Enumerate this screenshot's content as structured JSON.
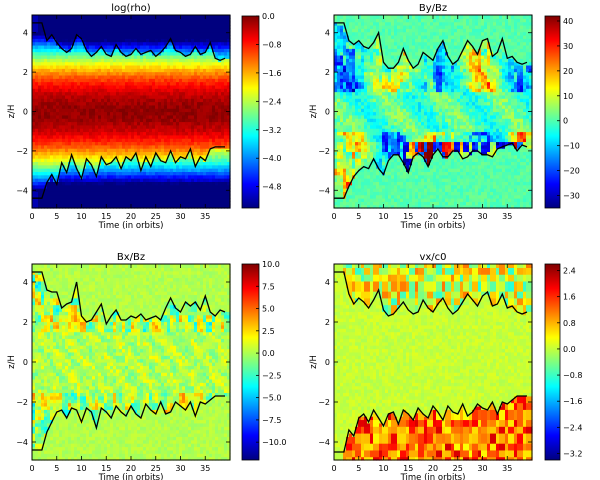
{
  "chart_data": [
    {
      "type": "heatmap",
      "title": "log(rho)",
      "xlabel": "Time (in orbits)",
      "ylabel": "z/H",
      "xlim": [
        0,
        40
      ],
      "ylim": [
        -4.9,
        4.9
      ],
      "x_ticks": [
        "0",
        "5",
        "10",
        "15",
        "20",
        "25",
        "30",
        "35"
      ],
      "y_ticks": [
        "4",
        "2",
        "0",
        "−2",
        "−4"
      ],
      "colorbar_ticks": [
        "0.0",
        "−0.8",
        "−1.6",
        "−2.4",
        "−3.2",
        "−4.0",
        "−4.8"
      ],
      "clim": [
        -5.4,
        0.0
      ],
      "colormap": "jet",
      "field": "density",
      "series": [
        {
          "x": [
            0,
            2,
            3,
            4,
            5,
            6,
            7,
            8,
            9,
            10,
            11,
            12,
            13,
            14,
            15,
            16,
            17,
            18,
            19,
            20,
            21,
            22,
            23,
            24,
            25,
            26,
            27,
            28,
            29,
            30,
            31,
            32,
            33,
            34,
            35,
            36,
            37,
            38,
            39
          ],
          "y": [
            4.5,
            4.5,
            3.6,
            3.9,
            3.5,
            3.2,
            3.0,
            3.2,
            3.9,
            3.7,
            3.1,
            2.8,
            3.0,
            3.3,
            2.9,
            2.8,
            3.4,
            3.0,
            2.8,
            2.9,
            3.2,
            2.9,
            3.0,
            3.1,
            2.8,
            3.0,
            3.3,
            3.7,
            3.1,
            3.0,
            2.8,
            2.9,
            3.3,
            2.9,
            3.0,
            3.5,
            2.7,
            2.6,
            2.7
          ]
        },
        {
          "x": [
            0,
            2,
            3,
            4,
            5,
            6,
            7,
            8,
            9,
            10,
            11,
            12,
            13,
            14,
            15,
            16,
            17,
            18,
            19,
            20,
            21,
            22,
            23,
            24,
            25,
            26,
            27,
            28,
            29,
            30,
            31,
            32,
            33,
            34,
            35,
            36,
            37,
            38,
            39
          ],
          "y": [
            -4.4,
            -4.4,
            -3.6,
            -3.2,
            -3.7,
            -2.6,
            -3.1,
            -2.2,
            -2.9,
            -3.4,
            -2.4,
            -2.7,
            -3.3,
            -2.3,
            -2.7,
            -2.6,
            -2.3,
            -2.9,
            -2.3,
            -2.5,
            -2.1,
            -3.0,
            -2.3,
            -2.8,
            -2.1,
            -2.5,
            -2.6,
            -2.0,
            -2.6,
            -2.3,
            -2.4,
            -1.9,
            -2.8,
            -2.3,
            -2.5,
            -1.9,
            -1.8,
            -1.8,
            -1.8
          ]
        }
      ]
    },
    {
      "type": "heatmap",
      "title": "By/Bz",
      "xlabel": "Time (in orbits)",
      "ylabel": "z/H",
      "xlim": [
        0,
        40
      ],
      "ylim": [
        -4.9,
        4.9
      ],
      "x_ticks": [
        "0",
        "5",
        "10",
        "15",
        "20",
        "25",
        "30",
        "35"
      ],
      "y_ticks": [
        "4",
        "2",
        "0",
        "−2",
        "−4"
      ],
      "colorbar_ticks": [
        "40",
        "30",
        "20",
        "10",
        "0",
        "−10",
        "−20",
        "−30"
      ],
      "clim": [
        -35,
        42
      ],
      "colormap": "jet",
      "field": "azimuthal",
      "series": [
        {
          "x": [
            0,
            2,
            3,
            4,
            5,
            6,
            7,
            8,
            9,
            10,
            11,
            12,
            13,
            14,
            15,
            16,
            17,
            18,
            19,
            20,
            21,
            22,
            23,
            24,
            25,
            26,
            27,
            28,
            29,
            30,
            31,
            32,
            33,
            34,
            35,
            36,
            37,
            38,
            39
          ],
          "y": [
            4.5,
            4.5,
            3.6,
            3.4,
            3.6,
            3.3,
            3.2,
            3.5,
            4.0,
            2.5,
            2.2,
            2.2,
            2.5,
            3.2,
            2.6,
            2.2,
            2.4,
            3.0,
            2.8,
            2.6,
            3.2,
            3.6,
            2.8,
            2.4,
            2.6,
            3.1,
            3.6,
            3.3,
            2.9,
            3.6,
            3.7,
            2.8,
            3.0,
            3.7,
            2.7,
            2.8,
            2.5,
            2.4,
            2.5
          ]
        },
        {
          "x": [
            0,
            2,
            3,
            4,
            5,
            6,
            7,
            8,
            9,
            10,
            11,
            12,
            13,
            14,
            15,
            16,
            17,
            18,
            19,
            20,
            21,
            22,
            23,
            24,
            25,
            26,
            27,
            28,
            29,
            30,
            31,
            32,
            33,
            34,
            35,
            36,
            37,
            38,
            39
          ],
          "y": [
            -4.4,
            -4.4,
            -3.8,
            -3.3,
            -3.0,
            -2.8,
            -2.9,
            -2.4,
            -2.9,
            -3.2,
            -2.5,
            -2.2,
            -2.2,
            -2.6,
            -3.1,
            -2.3,
            -2.1,
            -2.3,
            -2.8,
            -2.2,
            -1.9,
            -2.3,
            -2.3,
            -2.0,
            -2.0,
            -2.4,
            -2.3,
            -2.0,
            -2.0,
            -2.2,
            -2.2,
            -2.3,
            -1.9,
            -1.8,
            -1.7,
            -1.6,
            -2.0,
            -1.7,
            -1.8
          ]
        }
      ]
    },
    {
      "type": "heatmap",
      "title": "Bx/Bz",
      "xlabel": "Time (in orbits)",
      "ylabel": "z/H",
      "xlim": [
        0,
        40
      ],
      "ylim": [
        -4.9,
        4.9
      ],
      "x_ticks": [
        "0",
        "5",
        "10",
        "15",
        "20",
        "25",
        "30",
        "35"
      ],
      "y_ticks": [
        "4",
        "2",
        "0",
        "−2",
        "−4"
      ],
      "colorbar_ticks": [
        "10.0",
        "7.5",
        "5.0",
        "2.5",
        "0.0",
        "−2.5",
        "−5.0",
        "−7.5",
        "−10.0"
      ],
      "clim": [
        -12,
        10
      ],
      "colormap": "jet",
      "field": "radial",
      "series": [
        {
          "x": [
            0,
            2,
            3,
            4,
            5,
            6,
            7,
            8,
            9,
            10,
            11,
            12,
            13,
            14,
            15,
            16,
            17,
            18,
            19,
            20,
            21,
            22,
            23,
            24,
            25,
            26,
            27,
            28,
            29,
            30,
            31,
            32,
            33,
            34,
            35,
            36,
            37,
            38,
            39
          ],
          "y": [
            4.5,
            4.5,
            3.6,
            3.5,
            3.5,
            2.7,
            2.9,
            3.0,
            4.0,
            2.3,
            2.0,
            2.1,
            2.5,
            2.9,
            1.9,
            2.3,
            2.6,
            2.1,
            2.1,
            2.3,
            2.2,
            2.4,
            2.1,
            2.2,
            2.3,
            2.1,
            2.7,
            3.2,
            2.7,
            2.5,
            3.0,
            2.8,
            3.0,
            2.6,
            3.3,
            2.5,
            2.3,
            2.6,
            2.5
          ]
        },
        {
          "x": [
            0,
            2,
            3,
            4,
            5,
            6,
            7,
            8,
            9,
            10,
            11,
            12,
            13,
            14,
            15,
            16,
            17,
            18,
            19,
            20,
            21,
            22,
            23,
            24,
            25,
            26,
            27,
            28,
            29,
            30,
            31,
            32,
            33,
            34,
            35,
            36,
            37,
            38,
            39
          ],
          "y": [
            -4.4,
            -4.4,
            -3.5,
            -3.0,
            -2.5,
            -2.4,
            -2.8,
            -2.3,
            -2.4,
            -3.0,
            -2.3,
            -2.5,
            -3.3,
            -2.3,
            -2.5,
            -2.8,
            -2.2,
            -2.5,
            -2.7,
            -2.2,
            -2.6,
            -2.8,
            -2.1,
            -2.4,
            -2.6,
            -2.0,
            -2.6,
            -2.5,
            -2.0,
            -2.2,
            -2.4,
            -2.0,
            -2.7,
            -2.0,
            -2.1,
            -1.9,
            -1.7,
            -1.7,
            -1.7
          ]
        }
      ]
    },
    {
      "type": "heatmap",
      "title": "vx/c0",
      "xlabel": "Time (in orbits)",
      "ylabel": "z/H",
      "xlim": [
        0,
        40
      ],
      "ylim": [
        -4.9,
        4.9
      ],
      "x_ticks": [
        "0",
        "5",
        "10",
        "15",
        "20",
        "25",
        "30",
        "35"
      ],
      "y_ticks": [
        "4",
        "2",
        "0",
        "−2",
        "−4"
      ],
      "colorbar_ticks": [
        "2.4",
        "1.6",
        "0.8",
        "0.0",
        "−0.8",
        "−1.6",
        "−2.4",
        "−3.2"
      ],
      "clim": [
        -3.4,
        2.6
      ],
      "colormap": "jet",
      "field": "velocity",
      "series": [
        {
          "x": [
            0,
            2,
            3,
            4,
            5,
            6,
            7,
            8,
            9,
            10,
            11,
            12,
            13,
            14,
            15,
            16,
            17,
            18,
            19,
            20,
            21,
            22,
            23,
            24,
            25,
            26,
            27,
            28,
            29,
            30,
            31,
            32,
            33,
            34,
            35,
            36,
            37,
            38,
            39
          ],
          "y": [
            4.5,
            4.5,
            3.4,
            2.9,
            3.2,
            3.0,
            2.7,
            3.1,
            3.6,
            2.6,
            2.3,
            2.4,
            2.7,
            3.0,
            2.6,
            2.4,
            2.5,
            3.1,
            2.7,
            2.5,
            2.9,
            3.2,
            2.7,
            2.4,
            2.6,
            3.0,
            3.4,
            3.1,
            2.8,
            3.3,
            3.5,
            2.8,
            2.9,
            3.4,
            2.7,
            2.8,
            2.5,
            2.4,
            2.5
          ]
        },
        {
          "x": [
            0,
            2,
            3,
            4,
            5,
            6,
            7,
            8,
            9,
            10,
            11,
            12,
            13,
            14,
            15,
            16,
            17,
            18,
            19,
            20,
            21,
            22,
            23,
            24,
            25,
            26,
            27,
            28,
            29,
            30,
            31,
            32,
            33,
            34,
            35,
            36,
            37,
            38,
            39
          ],
          "y": [
            -4.5,
            -4.5,
            -3.4,
            -3.7,
            -2.8,
            -2.6,
            -3.0,
            -2.4,
            -2.8,
            -3.2,
            -2.6,
            -2.5,
            -3.1,
            -2.4,
            -2.6,
            -2.9,
            -2.3,
            -2.6,
            -2.8,
            -2.2,
            -2.5,
            -2.9,
            -2.2,
            -2.5,
            -2.6,
            -2.1,
            -2.7,
            -2.5,
            -2.1,
            -2.3,
            -2.4,
            -2.0,
            -2.6,
            -2.0,
            -2.1,
            -1.9,
            -1.7,
            -1.7,
            -1.7
          ]
        }
      ]
    }
  ],
  "colors": {
    "contour": "#000000",
    "colormap_stops": [
      "#00007f",
      "#0000ff",
      "#007fff",
      "#00ffff",
      "#7fff7f",
      "#ffff00",
      "#ff7f00",
      "#ff0000",
      "#7f0000"
    ]
  }
}
